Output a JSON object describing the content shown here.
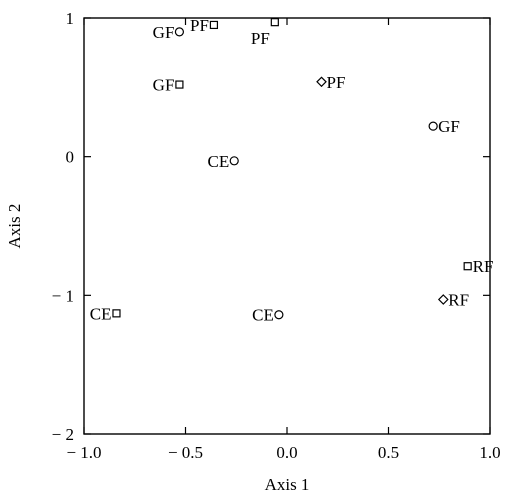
{
  "chart_data": {
    "type": "scatter",
    "xlabel": "Axis 1",
    "ylabel": "Axis 2",
    "xlim": [
      -1.0,
      1.0
    ],
    "ylim": [
      -2,
      1
    ],
    "x_ticks": [
      -1.0,
      -0.5,
      0.0,
      0.5,
      1.0
    ],
    "x_tick_labels": [
      "− 1.0",
      "− 0.5",
      "0.0",
      "0.5",
      "1.0"
    ],
    "y_ticks": [
      1,
      0,
      -1,
      -2
    ],
    "y_tick_labels": [
      "1",
      "0",
      "− 1",
      "− 2"
    ],
    "grid": false,
    "points": [
      {
        "label": "GF",
        "x": -0.53,
        "y": 0.9,
        "marker": "circle",
        "label_side": "left"
      },
      {
        "label": "PF",
        "x": -0.36,
        "y": 0.95,
        "marker": "square",
        "label_side": "left"
      },
      {
        "label": "PF",
        "x": -0.06,
        "y": 0.97,
        "marker": "square",
        "label_side": "below-left"
      },
      {
        "label": "GF",
        "x": -0.53,
        "y": 0.52,
        "marker": "square",
        "label_side": "left"
      },
      {
        "label": "PF",
        "x": 0.17,
        "y": 0.54,
        "marker": "diamond",
        "label_side": "right"
      },
      {
        "label": "GF",
        "x": 0.72,
        "y": 0.22,
        "marker": "circle",
        "label_side": "right"
      },
      {
        "label": "CE",
        "x": -0.26,
        "y": -0.03,
        "marker": "circle",
        "label_side": "left"
      },
      {
        "label": "RF",
        "x": 0.89,
        "y": -0.79,
        "marker": "square",
        "label_side": "right"
      },
      {
        "label": "RF",
        "x": 0.77,
        "y": -1.03,
        "marker": "diamond",
        "label_side": "right"
      },
      {
        "label": "CE",
        "x": -0.84,
        "y": -1.13,
        "marker": "square",
        "label_side": "left"
      },
      {
        "label": "CE",
        "x": -0.04,
        "y": -1.14,
        "marker": "circle",
        "label_side": "left"
      }
    ]
  }
}
